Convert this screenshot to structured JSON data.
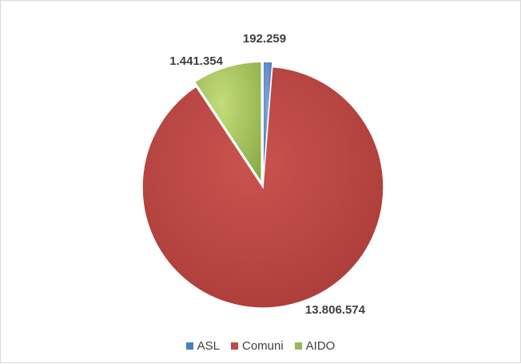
{
  "chart_data": {
    "type": "pie",
    "categories": [
      "ASL",
      "Comuni",
      "AIDO"
    ],
    "values": [
      192259,
      13806574,
      1441354
    ],
    "data_labels": [
      "192.259",
      "13.806.574",
      "1.441.354"
    ],
    "colors": [
      "#4a7ebb",
      "#be4b48",
      "#98b954"
    ],
    "exploded": [
      "ASL",
      "AIDO"
    ],
    "legend_position": "bottom",
    "title": ""
  }
}
